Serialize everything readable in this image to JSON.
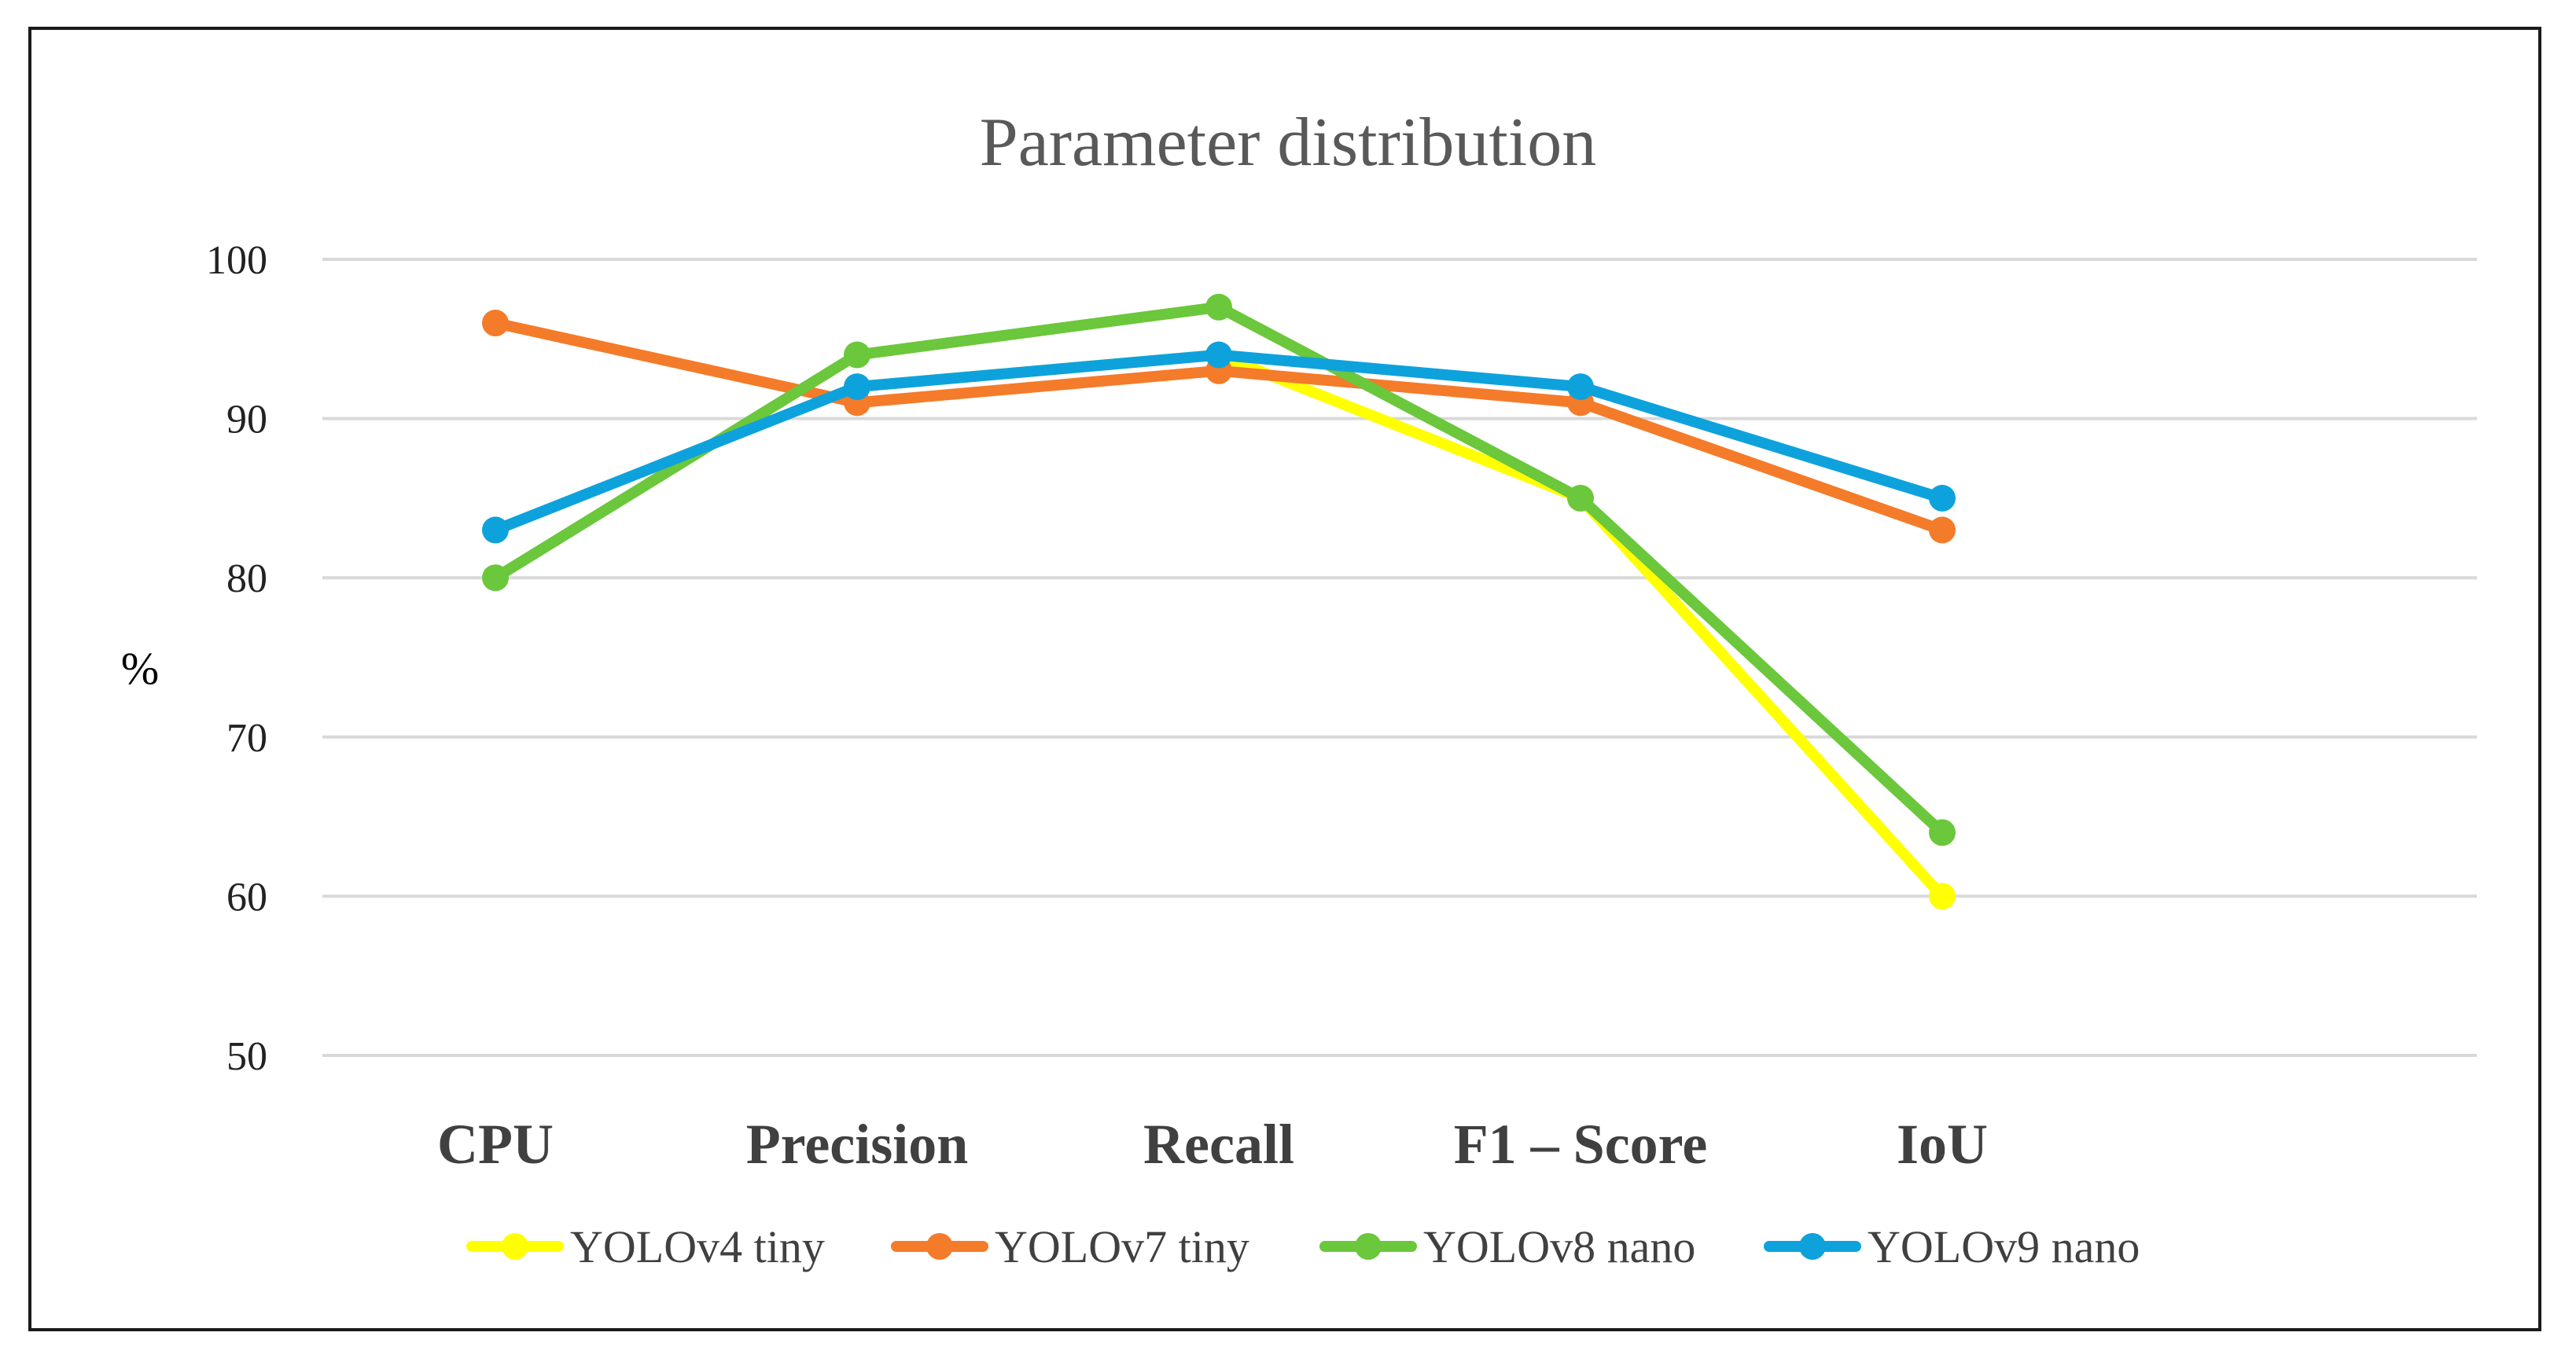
{
  "chart_data": {
    "type": "line",
    "title": "Parameter distribution",
    "xlabel": "",
    "ylabel": "%",
    "ylim": [
      50,
      100
    ],
    "yticks": [
      50,
      60,
      70,
      80,
      90,
      100
    ],
    "grid": true,
    "legend": "bottom",
    "categories": [
      "CPU",
      "Precision",
      "Recall",
      "F1 – Score",
      "IoU"
    ],
    "series": [
      {
        "name": "YOLOv4 tiny",
        "color": "#FFFF00",
        "values": [
          null,
          92,
          94,
          85,
          60
        ]
      },
      {
        "name": "YOLOv7 tiny",
        "color": "#F47B2A",
        "values": [
          96,
          91,
          93,
          91,
          83
        ]
      },
      {
        "name": "YOLOv8 nano",
        "color": "#6BC73B",
        "values": [
          80,
          94,
          97,
          85,
          64
        ]
      },
      {
        "name": "YOLOv9 nano",
        "color": "#0EA2DD",
        "values": [
          83,
          92,
          94,
          92,
          85
        ]
      }
    ]
  }
}
